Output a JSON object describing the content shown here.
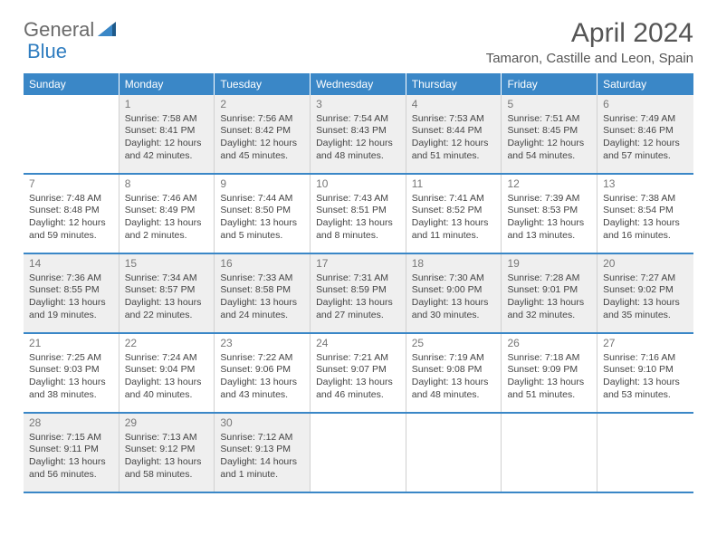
{
  "brand": {
    "part1": "General",
    "part2": "Blue"
  },
  "title": "April 2024",
  "location": "Tamaron, Castille and Leon, Spain",
  "dayNames": [
    "Sunday",
    "Monday",
    "Tuesday",
    "Wednesday",
    "Thursday",
    "Friday",
    "Saturday"
  ],
  "colors": {
    "headerBar": "#3a87c7",
    "brandGray": "#6a6a6a",
    "brandBlue": "#2f7dc0",
    "weekBorder": "#3a87c7",
    "cellBorder": "#d0d0d0",
    "altBg": "#f0f0f0"
  },
  "weeks": [
    [
      null,
      {
        "d": "1",
        "sr": "7:58 AM",
        "ss": "8:41 PM",
        "dl": "12 hours and 42 minutes."
      },
      {
        "d": "2",
        "sr": "7:56 AM",
        "ss": "8:42 PM",
        "dl": "12 hours and 45 minutes."
      },
      {
        "d": "3",
        "sr": "7:54 AM",
        "ss": "8:43 PM",
        "dl": "12 hours and 48 minutes."
      },
      {
        "d": "4",
        "sr": "7:53 AM",
        "ss": "8:44 PM",
        "dl": "12 hours and 51 minutes."
      },
      {
        "d": "5",
        "sr": "7:51 AM",
        "ss": "8:45 PM",
        "dl": "12 hours and 54 minutes."
      },
      {
        "d": "6",
        "sr": "7:49 AM",
        "ss": "8:46 PM",
        "dl": "12 hours and 57 minutes."
      }
    ],
    [
      {
        "d": "7",
        "sr": "7:48 AM",
        "ss": "8:48 PM",
        "dl": "12 hours and 59 minutes."
      },
      {
        "d": "8",
        "sr": "7:46 AM",
        "ss": "8:49 PM",
        "dl": "13 hours and 2 minutes."
      },
      {
        "d": "9",
        "sr": "7:44 AM",
        "ss": "8:50 PM",
        "dl": "13 hours and 5 minutes."
      },
      {
        "d": "10",
        "sr": "7:43 AM",
        "ss": "8:51 PM",
        "dl": "13 hours and 8 minutes."
      },
      {
        "d": "11",
        "sr": "7:41 AM",
        "ss": "8:52 PM",
        "dl": "13 hours and 11 minutes."
      },
      {
        "d": "12",
        "sr": "7:39 AM",
        "ss": "8:53 PM",
        "dl": "13 hours and 13 minutes."
      },
      {
        "d": "13",
        "sr": "7:38 AM",
        "ss": "8:54 PM",
        "dl": "13 hours and 16 minutes."
      }
    ],
    [
      {
        "d": "14",
        "sr": "7:36 AM",
        "ss": "8:55 PM",
        "dl": "13 hours and 19 minutes."
      },
      {
        "d": "15",
        "sr": "7:34 AM",
        "ss": "8:57 PM",
        "dl": "13 hours and 22 minutes."
      },
      {
        "d": "16",
        "sr": "7:33 AM",
        "ss": "8:58 PM",
        "dl": "13 hours and 24 minutes."
      },
      {
        "d": "17",
        "sr": "7:31 AM",
        "ss": "8:59 PM",
        "dl": "13 hours and 27 minutes."
      },
      {
        "d": "18",
        "sr": "7:30 AM",
        "ss": "9:00 PM",
        "dl": "13 hours and 30 minutes."
      },
      {
        "d": "19",
        "sr": "7:28 AM",
        "ss": "9:01 PM",
        "dl": "13 hours and 32 minutes."
      },
      {
        "d": "20",
        "sr": "7:27 AM",
        "ss": "9:02 PM",
        "dl": "13 hours and 35 minutes."
      }
    ],
    [
      {
        "d": "21",
        "sr": "7:25 AM",
        "ss": "9:03 PM",
        "dl": "13 hours and 38 minutes."
      },
      {
        "d": "22",
        "sr": "7:24 AM",
        "ss": "9:04 PM",
        "dl": "13 hours and 40 minutes."
      },
      {
        "d": "23",
        "sr": "7:22 AM",
        "ss": "9:06 PM",
        "dl": "13 hours and 43 minutes."
      },
      {
        "d": "24",
        "sr": "7:21 AM",
        "ss": "9:07 PM",
        "dl": "13 hours and 46 minutes."
      },
      {
        "d": "25",
        "sr": "7:19 AM",
        "ss": "9:08 PM",
        "dl": "13 hours and 48 minutes."
      },
      {
        "d": "26",
        "sr": "7:18 AM",
        "ss": "9:09 PM",
        "dl": "13 hours and 51 minutes."
      },
      {
        "d": "27",
        "sr": "7:16 AM",
        "ss": "9:10 PM",
        "dl": "13 hours and 53 minutes."
      }
    ],
    [
      {
        "d": "28",
        "sr": "7:15 AM",
        "ss": "9:11 PM",
        "dl": "13 hours and 56 minutes."
      },
      {
        "d": "29",
        "sr": "7:13 AM",
        "ss": "9:12 PM",
        "dl": "13 hours and 58 minutes."
      },
      {
        "d": "30",
        "sr": "7:12 AM",
        "ss": "9:13 PM",
        "dl": "14 hours and 1 minute."
      },
      null,
      null,
      null,
      null
    ]
  ],
  "labels": {
    "sunrise": "Sunrise:",
    "sunset": "Sunset:",
    "daylight": "Daylight:"
  }
}
